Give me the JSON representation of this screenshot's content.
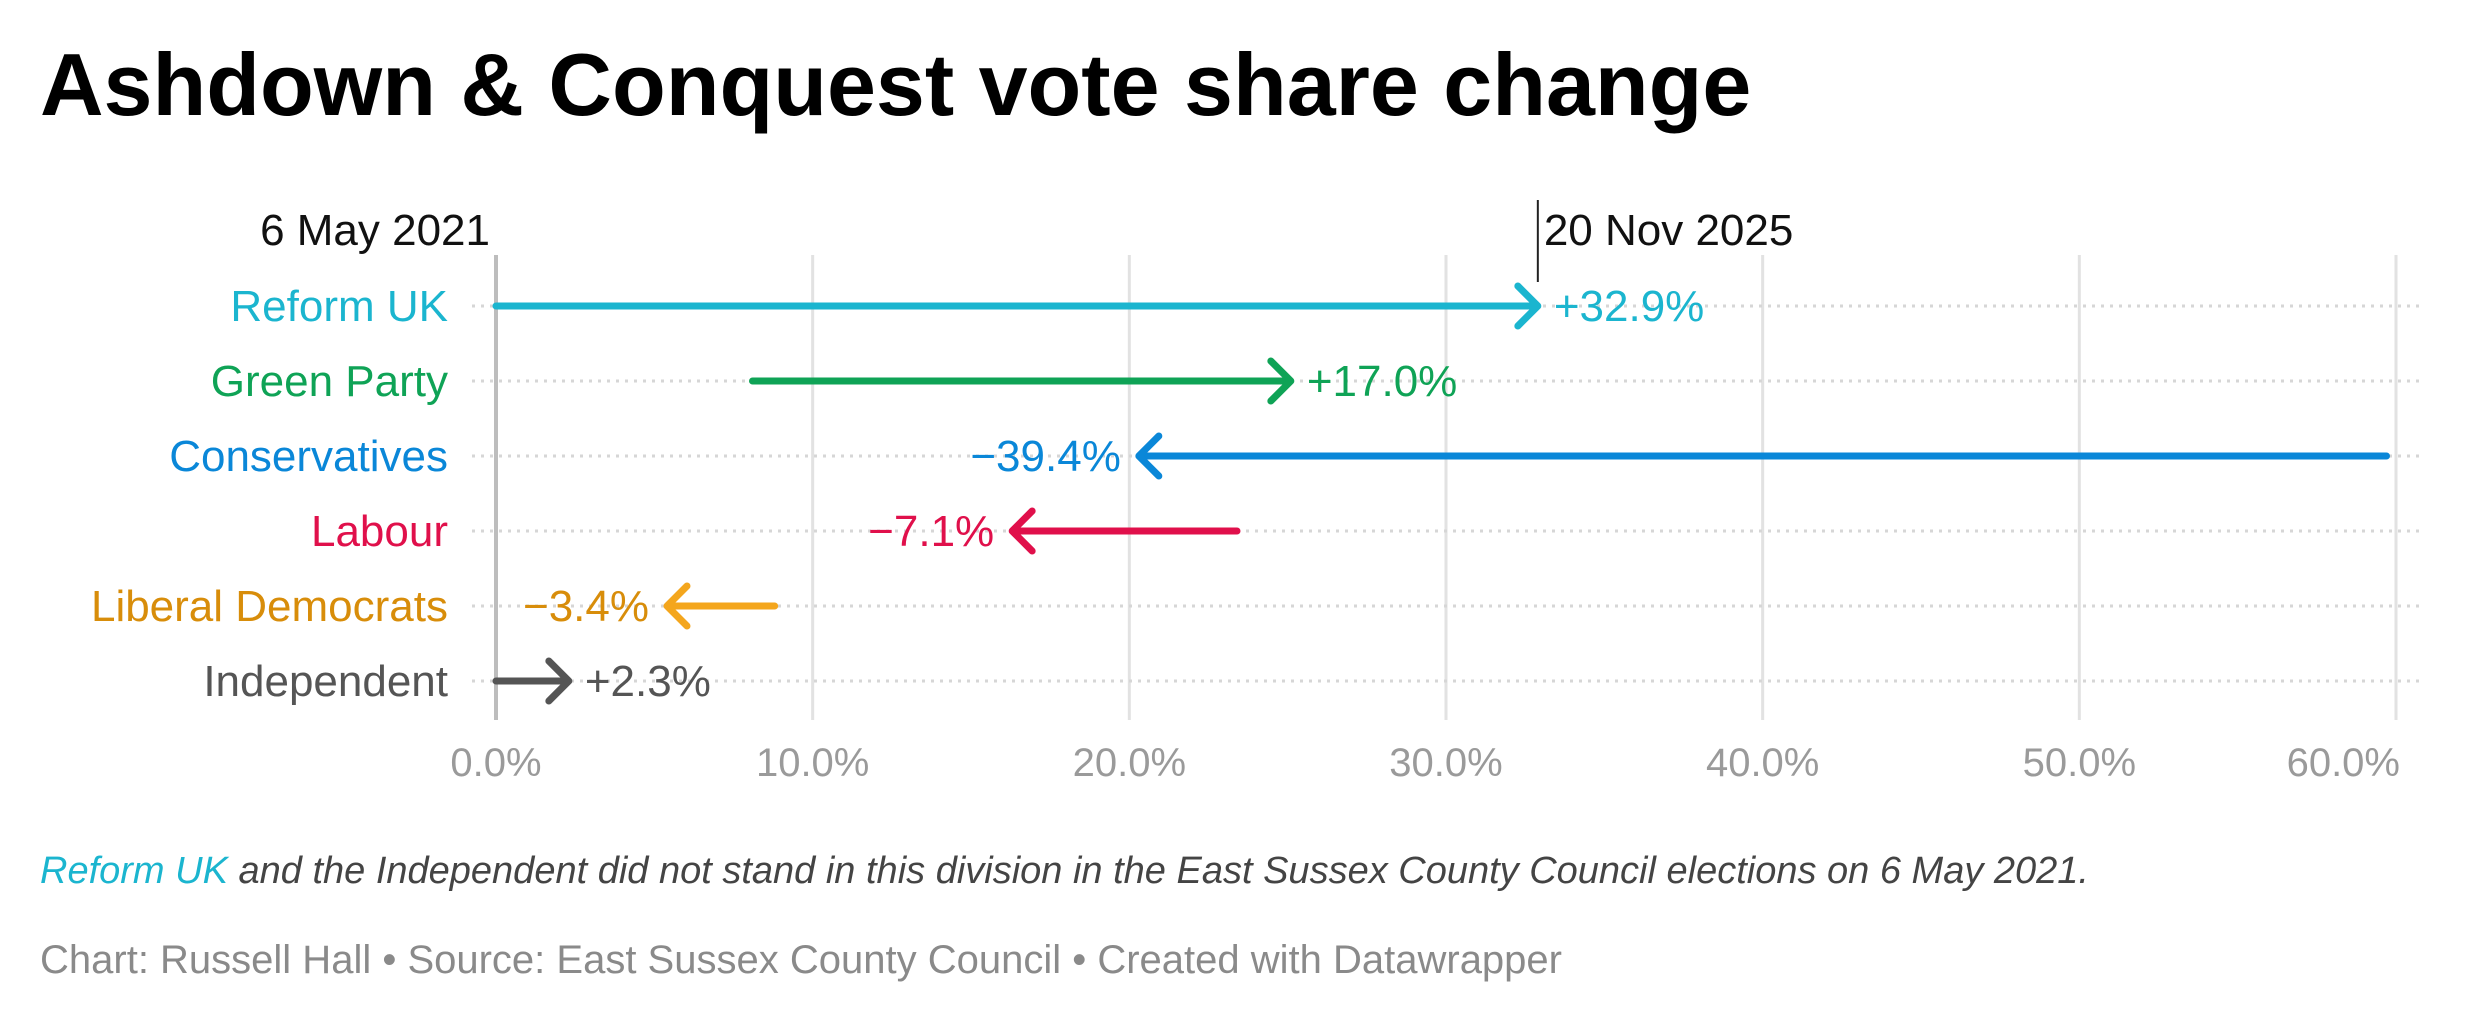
{
  "title": "Ashdown & Conquest vote share change",
  "header_labels": {
    "start": "6 May 2021",
    "end": "20 Nov 2025"
  },
  "note": {
    "highlight": "Reform UK",
    "text": " and the Independent did not stand in this division in the East Sussex County Council elections on 6 May 2021."
  },
  "credit": "Chart: Russell Hall • Source: East Sussex County Council • Created with Datawrapper",
  "chart_data": {
    "type": "arrow",
    "title": "Ashdown & Conquest vote share change",
    "xlim": [
      0,
      60
    ],
    "x_ticks": [
      0,
      10,
      20,
      30,
      40,
      50,
      60
    ],
    "x_tick_labels": [
      "0.0%",
      "10.0%",
      "20.0%",
      "30.0%",
      "40.0%",
      "50.0%",
      "60.0%"
    ],
    "grid": true,
    "rows": [
      {
        "party": "Reform UK",
        "start": 0.0,
        "end": 32.9,
        "change_label": "+32.9%",
        "color": "#1bb5cf",
        "label_color": "#1bb5cf"
      },
      {
        "party": "Green Party",
        "start": 8.1,
        "end": 25.1,
        "change_label": "+17.0%",
        "color": "#0fa356",
        "label_color": "#0fa356"
      },
      {
        "party": "Conservatives",
        "start": 59.7,
        "end": 20.3,
        "change_label": "−39.4%",
        "color": "#0a87d8",
        "label_color": "#0a87d8"
      },
      {
        "party": "Labour",
        "start": 23.4,
        "end": 16.3,
        "change_label": "−7.1%",
        "color": "#e0104b",
        "label_color": "#e0104b"
      },
      {
        "party": "Liberal Democrats",
        "start": 8.8,
        "end": 5.4,
        "change_label": "−3.4%",
        "color": "#f4a61d",
        "label_color": "#d88d0a"
      },
      {
        "party": "Independent",
        "start": 0.0,
        "end": 2.3,
        "change_label": "+2.3%",
        "color": "#555555",
        "label_color": "#555555"
      }
    ]
  }
}
